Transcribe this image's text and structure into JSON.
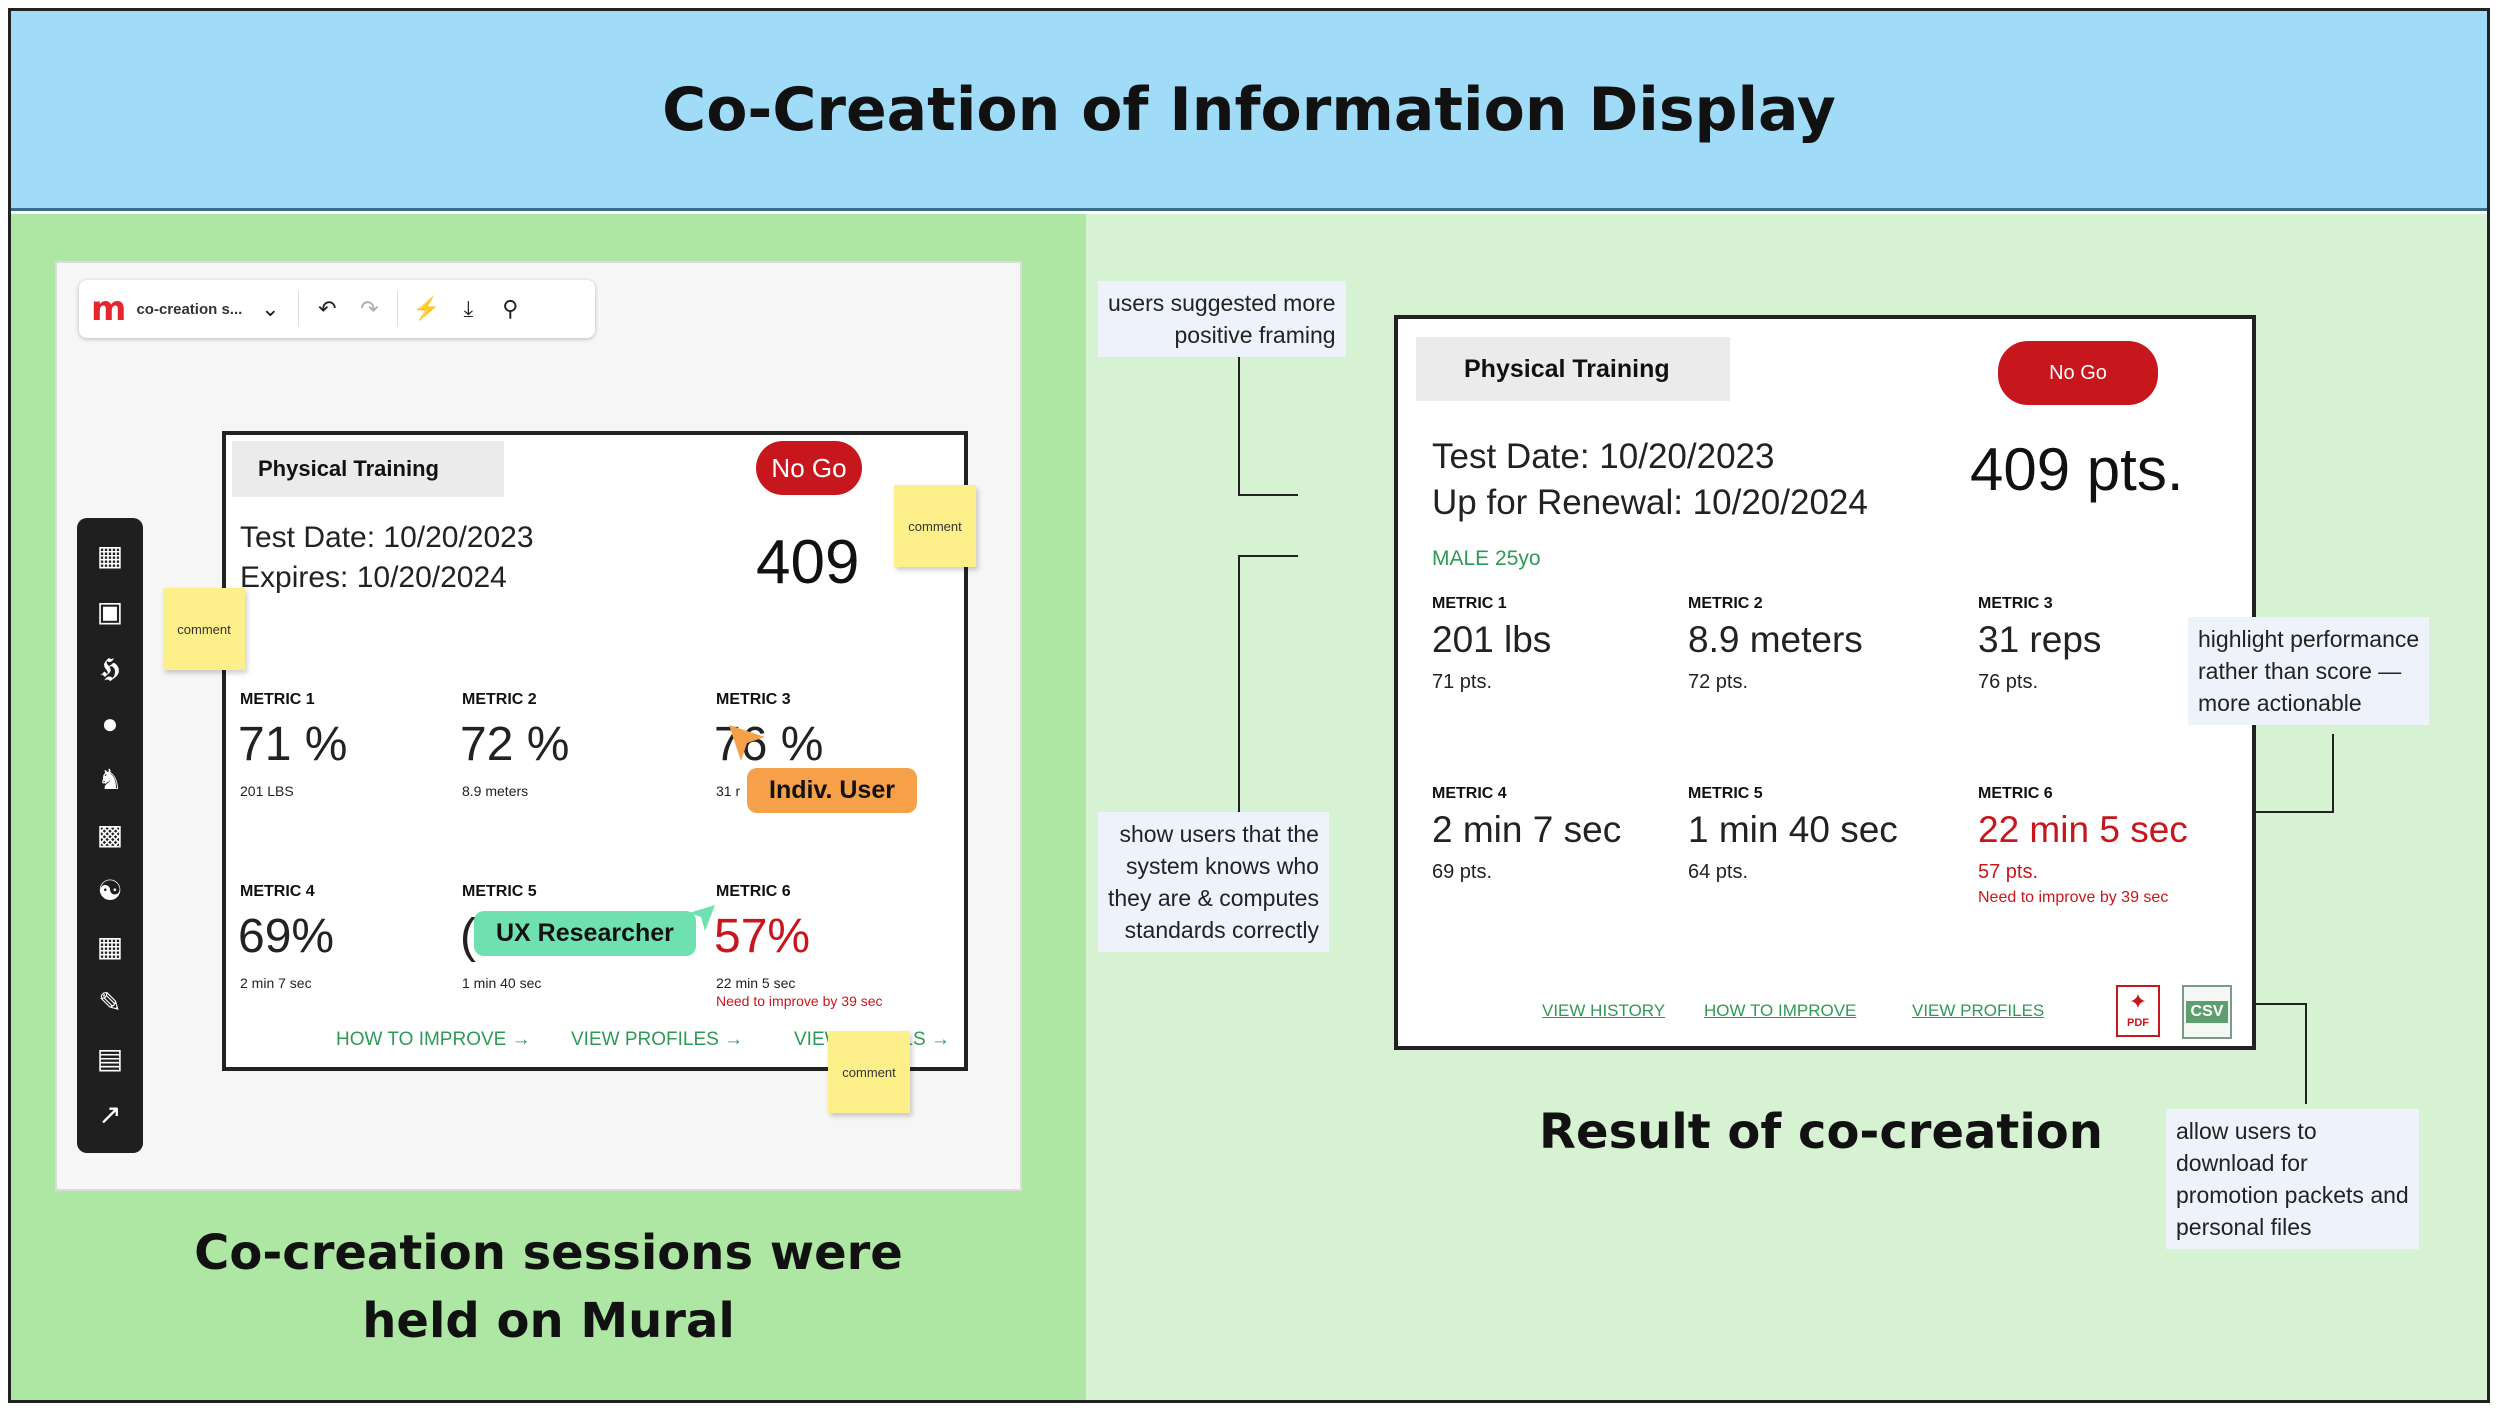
{
  "header": {
    "title": "Co-Creation of Information Display"
  },
  "mural": {
    "toolbar": {
      "logo": "m",
      "board_name": "co-creation s...",
      "icons": [
        "chevron-down-icon",
        "undo-icon",
        "redo-icon",
        "lightning-icon",
        "download-icon",
        "search-icon"
      ]
    },
    "sidebar_icons": [
      "layout-icon",
      "sticky-note-icon",
      "text-icon",
      "shapes-icon",
      "animal-icon",
      "image-icon",
      "diagram-icon",
      "table-icon",
      "pen-icon",
      "archive-icon",
      "export-icon"
    ],
    "card": {
      "title": "Physical Training",
      "status": "No Go",
      "test_date": "Test Date: 10/20/2023",
      "expires": "Expires: 10/20/2024",
      "score": "409",
      "metrics": [
        {
          "label": "METRIC 1",
          "value": "71 %",
          "detail": "201 LBS"
        },
        {
          "label": "METRIC 2",
          "value": "72 %",
          "detail": "8.9 meters"
        },
        {
          "label": "METRIC 3",
          "value": "76 %",
          "detail": "31 r"
        },
        {
          "label": "METRIC 4",
          "value": "69%",
          "detail": "2 min 7 sec"
        },
        {
          "label": "METRIC 5",
          "value": "(",
          "detail": "1 min 40 sec"
        },
        {
          "label": "METRIC 6",
          "value": "57%",
          "detail": "22 min 5 sec",
          "note": "Need to improve by 39 sec"
        }
      ],
      "links": [
        "HOW TO IMPROVE →",
        "VIEW PROFILES →",
        "VIEW DETAILS →"
      ]
    },
    "stickies": [
      "comment",
      "comment",
      "comment"
    ],
    "cursors": [
      {
        "label": "Indiv. User",
        "color": "#f7a04a"
      },
      {
        "label": "UX Researcher",
        "color": "#6fe0b0"
      }
    ]
  },
  "left_caption": {
    "line1": "Co-creation sessions were",
    "line2": "held on Mural"
  },
  "result": {
    "card": {
      "title": "Physical Training",
      "status": "No Go",
      "test_date": "Test Date: 10/20/2023",
      "renewal": "Up for Renewal: 10/20/2024",
      "score": "409 pts.",
      "demographic": "MALE 25yo",
      "metrics": [
        {
          "label": "METRIC 1",
          "value": "201 lbs",
          "pts": "71 pts."
        },
        {
          "label": "METRIC 2",
          "value": "8.9 meters",
          "pts": "72 pts."
        },
        {
          "label": "METRIC 3",
          "value": "31 reps",
          "pts": "76 pts."
        },
        {
          "label": "METRIC 4",
          "value": "2 min 7 sec",
          "pts": "69 pts."
        },
        {
          "label": "METRIC 5",
          "value": "1 min 40 sec",
          "pts": "64 pts."
        },
        {
          "label": "METRIC 6",
          "value": "22 min 5 sec",
          "pts": "57 pts.",
          "note": "Need to improve by 39 sec"
        }
      ],
      "links": [
        "VIEW HISTORY",
        "HOW TO IMPROVE",
        "VIEW PROFILES"
      ],
      "download_icons": [
        "pdf-icon",
        "csv-icon"
      ],
      "pdf_label": "PDF",
      "csv_label": "CSV"
    },
    "annotations": [
      [
        "users suggested more",
        "positive framing"
      ],
      [
        "show users that the",
        "system knows who",
        "they are & computes",
        "standards correctly"
      ],
      [
        "highlight performance",
        "rather than score —",
        "more actionable"
      ],
      [
        "allow users to",
        "download for",
        "promotion packets and",
        "personal files"
      ]
    ],
    "caption": "Result of co-creation"
  },
  "colors": {
    "header_bg": "#a0dcf7",
    "left_bg": "#aee6a4",
    "right_bg": "#d6f2d2",
    "nogo_red": "#c8161d",
    "link_green": "#2e9a55",
    "sticky_yellow": "#fdf08a"
  }
}
